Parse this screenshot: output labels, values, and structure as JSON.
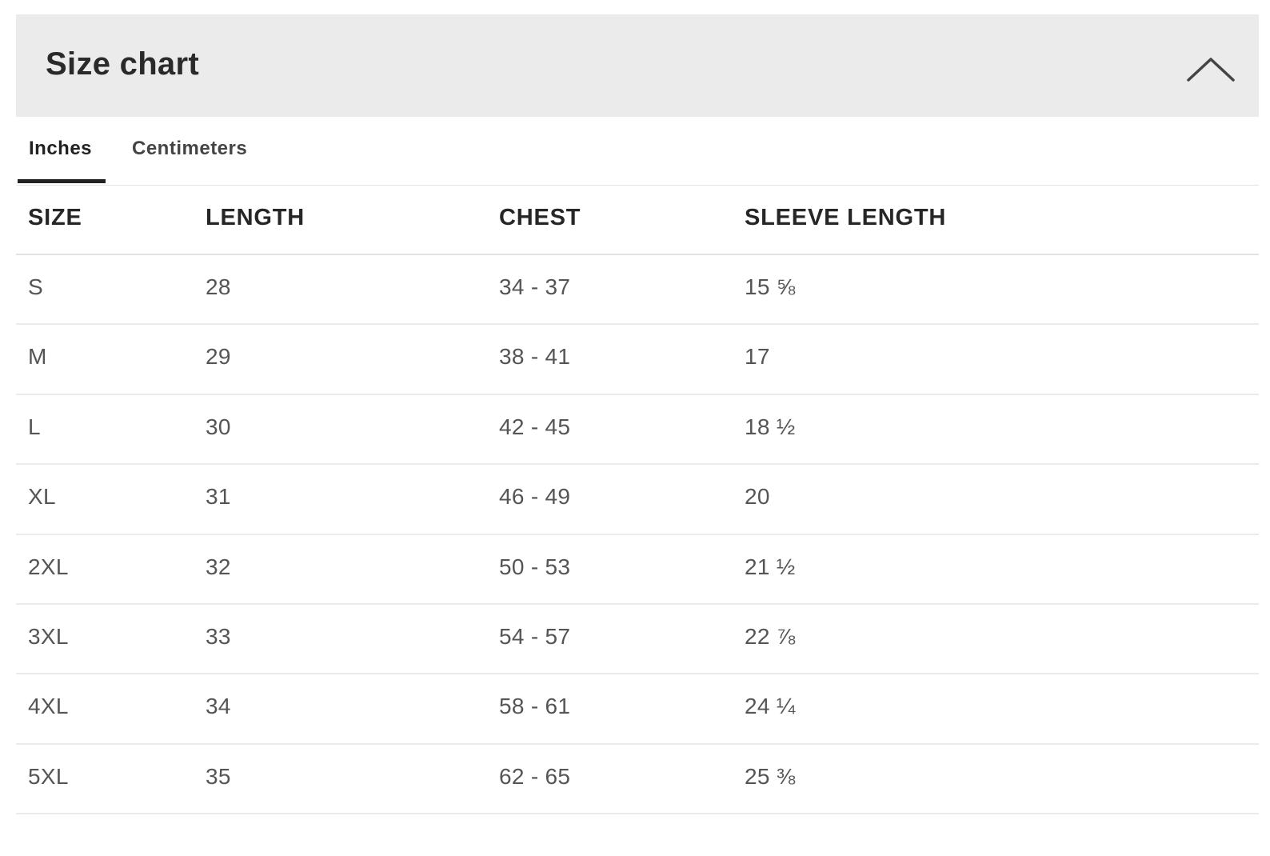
{
  "header": {
    "title": "Size chart",
    "toggle_icon": "chevron-up-icon"
  },
  "tabs": [
    {
      "label": "Inches",
      "active": true
    },
    {
      "label": "Centimeters",
      "active": false
    }
  ],
  "table": {
    "columns": [
      "SIZE",
      "LENGTH",
      "CHEST",
      "SLEEVE LENGTH"
    ],
    "rows": [
      [
        "S",
        "28",
        "34 - 37",
        "15 ⅝"
      ],
      [
        "M",
        "29",
        "38 - 41",
        "17"
      ],
      [
        "L",
        "30",
        "42 - 45",
        "18 ½"
      ],
      [
        "XL",
        "31",
        "46 - 49",
        "20"
      ],
      [
        "2XL",
        "32",
        "50 - 53",
        "21 ½"
      ],
      [
        "3XL",
        "33",
        "54 - 57",
        "22 ⅞"
      ],
      [
        "4XL",
        "34",
        "58 - 61",
        "24 ¼"
      ],
      [
        "5XL",
        "35",
        "62 - 65",
        "25 ⅜"
      ]
    ]
  },
  "colors": {
    "header_bg": "#ebebeb",
    "active_tab_underline": "#222222",
    "divider": "#ebebeb"
  }
}
